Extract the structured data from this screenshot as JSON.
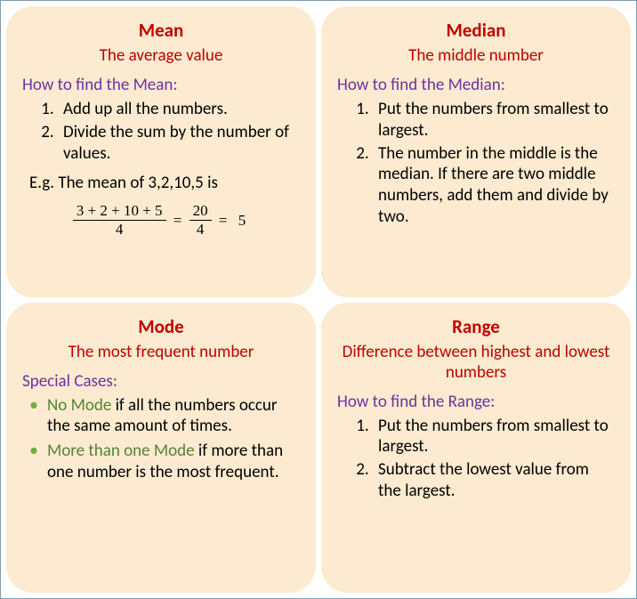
{
  "card_background": "#fcebd0",
  "title_color": "#c00000",
  "howto_color": "#7030a0",
  "bullet_color": "#70ad47",
  "green_text_color": "#548235",
  "mean": {
    "title": "Mean",
    "subtitle": "The average value",
    "howto": "How to find the Mean:",
    "steps": [
      "Add up all the numbers.",
      "Divide the sum by the number of values."
    ],
    "example_intro": "E.g. The mean of 3,2,10,5 is",
    "frac1_num": "3 + 2 + 10 + 5",
    "frac1_den": "4",
    "frac2_num": "20",
    "frac2_den": "4",
    "result": "5"
  },
  "median": {
    "title": "Median",
    "subtitle": "The middle number",
    "howto": "How to find the Median:",
    "steps": [
      "Put the numbers from smallest to largest.",
      "The number in the middle is the median. If there are two middle numbers, add them and divide by two."
    ]
  },
  "mode": {
    "title": "Mode",
    "subtitle": "The most frequent number",
    "howto": "Special Cases:",
    "case1_green": "No Mode",
    "case1_rest": " if all the numbers occur the same amount of times.",
    "case2_green": "More than one Mode",
    "case2_rest": " if more than one number is the most frequent."
  },
  "range": {
    "title": "Range",
    "subtitle": "Difference between highest and lowest numbers",
    "howto": "How to find the Range:",
    "steps": [
      "Put the numbers from smallest to largest.",
      "Subtract the lowest value from the largest."
    ]
  }
}
